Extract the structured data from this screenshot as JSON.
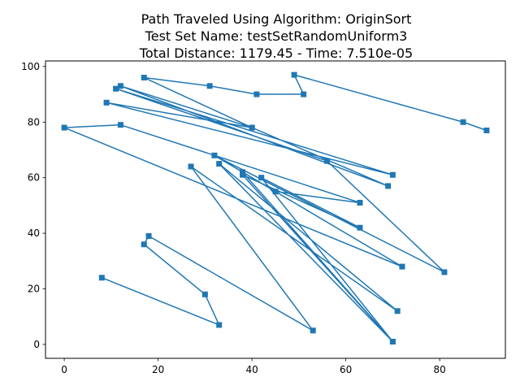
{
  "chart_data": {
    "type": "line",
    "title_lines": [
      "Path Traveled Using Algorithm: OriginSort",
      "Test Set Name: testSetRandomUniform3",
      "Total Distance: 1179.45 - Time: 7.510e-05"
    ],
    "xlabel": "",
    "ylabel": "",
    "xlim": [
      -4,
      94
    ],
    "ylim": [
      -5,
      102
    ],
    "xticks": [
      0,
      20,
      40,
      60,
      80
    ],
    "yticks": [
      0,
      20,
      40,
      60,
      80,
      100
    ],
    "grid": false,
    "series": [
      {
        "name": "path",
        "color": "#1f77b4",
        "marker": "square",
        "points": [
          [
            8,
            24
          ],
          [
            33,
            7
          ],
          [
            30,
            18
          ],
          [
            17,
            36
          ],
          [
            18,
            39
          ],
          [
            53,
            5
          ],
          [
            27,
            64
          ],
          [
            71,
            12
          ],
          [
            33,
            65
          ],
          [
            70,
            1
          ],
          [
            38,
            61
          ],
          [
            63,
            42
          ],
          [
            42,
            60
          ],
          [
            70,
            1
          ],
          [
            38,
            62
          ],
          [
            72,
            28
          ],
          [
            0,
            78
          ],
          [
            12,
            79
          ],
          [
            63,
            51
          ],
          [
            45,
            55
          ],
          [
            32,
            68
          ],
          [
            81,
            26
          ],
          [
            56,
            66
          ],
          [
            11,
            92
          ],
          [
            70,
            61
          ],
          [
            9,
            87
          ],
          [
            40,
            78
          ],
          [
            12,
            93
          ],
          [
            69,
            57
          ],
          [
            40,
            78
          ],
          [
            17,
            96
          ],
          [
            31,
            93
          ],
          [
            41,
            90
          ],
          [
            51,
            90
          ],
          [
            49,
            97
          ],
          [
            85,
            80
          ],
          [
            90,
            77
          ]
        ]
      }
    ]
  }
}
